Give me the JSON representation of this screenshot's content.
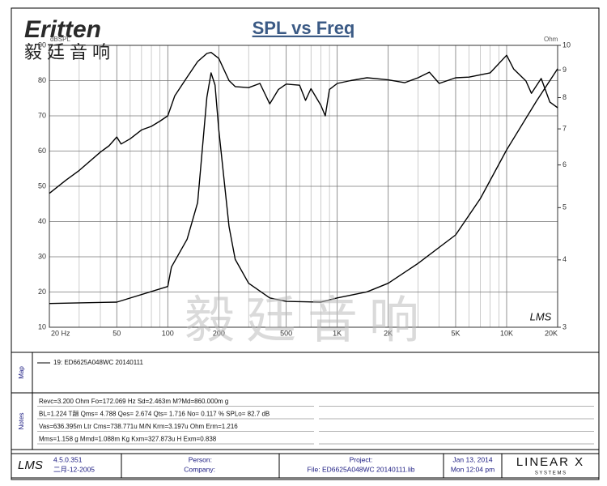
{
  "header": {
    "logo": "Eritten",
    "logo_sub": "毅廷音响",
    "watermark": "毅廷音响"
  },
  "chart_data": {
    "type": "line",
    "title": "SPL vs Freq",
    "y_label": "dBSPL",
    "y2_label": "Ohm",
    "plot_mark": "LMS",
    "xscale": "log",
    "xlim": [
      20,
      20000
    ],
    "xticks": [
      {
        "value": 20,
        "label": "20 Hz"
      },
      50,
      100,
      200,
      500,
      {
        "value": 1000,
        "label": "1K"
      },
      {
        "value": 2000,
        "label": "2K"
      },
      {
        "value": 5000,
        "label": "5K"
      },
      {
        "value": 10000,
        "label": "10K"
      },
      {
        "value": 20000,
        "label": "20K"
      }
    ],
    "xminor": [
      30,
      40,
      60,
      70,
      80,
      90,
      300,
      400,
      600,
      700,
      800,
      900,
      3000,
      4000,
      6000,
      7000,
      8000,
      9000
    ],
    "ylim": [
      10,
      90
    ],
    "yticks": [
      10,
      20,
      30,
      40,
      50,
      60,
      70,
      80,
      90
    ],
    "y2scale": "log",
    "y2lim": [
      3,
      10
    ],
    "y2ticks": [
      3,
      4,
      5,
      6,
      7,
      8,
      9,
      10
    ],
    "grid": true,
    "series": [
      {
        "name": "19: ED6625A048WC  20140111",
        "color": "#000000",
        "x": [
          20,
          25,
          30,
          40,
          45,
          50,
          53,
          60,
          70,
          80,
          90,
          100,
          110,
          130,
          150,
          170,
          180,
          200,
          230,
          250,
          300,
          350,
          400,
          450,
          500,
          600,
          650,
          700,
          800,
          850,
          900,
          1000,
          1200,
          1500,
          2000,
          2500,
          3000,
          3500,
          4000,
          5000,
          6000,
          8000,
          10000,
          11000,
          13000,
          14000,
          16000,
          18000,
          20000
        ],
        "values": [
          48,
          51.7,
          54.5,
          59.7,
          61.5,
          64,
          62,
          63.5,
          66,
          67,
          68.5,
          70,
          75.7,
          81,
          85.4,
          87.7,
          88,
          86.3,
          80,
          78.3,
          78,
          79.2,
          73.4,
          77.5,
          79,
          78.7,
          74.4,
          77.7,
          73,
          70,
          77.5,
          79.2,
          80,
          80.8,
          80.2,
          79.4,
          80.8,
          82.4,
          79.2,
          80.8,
          81,
          82.2,
          87.2,
          83.3,
          79.9,
          76.4,
          80.6,
          73.9,
          72.3
        ]
      },
      {
        "color": "#000000",
        "axis": "y2",
        "x": [
          20,
          50,
          100,
          105,
          130,
          150,
          170,
          180,
          190,
          200,
          230,
          250,
          300,
          400,
          500,
          800,
          1000,
          1500,
          2000,
          3000,
          5000,
          7000,
          10000,
          15000,
          20000
        ],
        "values": [
          3.32,
          3.34,
          3.57,
          3.88,
          4.37,
          5.11,
          8.01,
          8.89,
          8.44,
          6.98,
          4.61,
          4.01,
          3.62,
          3.4,
          3.35,
          3.34,
          3.4,
          3.49,
          3.62,
          3.94,
          4.45,
          5.2,
          6.4,
          7.88,
          9.05
        ]
      }
    ]
  },
  "panels": {
    "map_label": "Map",
    "notes_label": "Notes",
    "notes": [
      "Revc=3.200 Ohm  Fo=172.069 Hz  Sd=2.463m M?Md=860.000m g",
      "BL=1.224 T趟  Qms= 4.788  Qes= 2.674  Qts= 1.716  No= 0.117 %  SPLo= 82.7 dB",
      "Vas=636.395m Ltr  Cms=738.771u M/N  Krm=3.197u Ohm  Erm=1.216",
      "Mms=1.158 g  Mmd=1.088m Kg  Kxm=327.873u H  Exm=0.838"
    ]
  },
  "footer": {
    "logo": "LMS",
    "version": "4.5.0.351",
    "date": "二月-12-2005",
    "person": "Person:",
    "company": "Company:",
    "project": "Project:",
    "file": "File: ED6625A048WC  20140111.lib",
    "run_date": "Jan 13, 2014",
    "run_time": "Mon 12:04 pm",
    "brand": "LINEAR X",
    "brand_sub": "S Y S T E M S"
  }
}
